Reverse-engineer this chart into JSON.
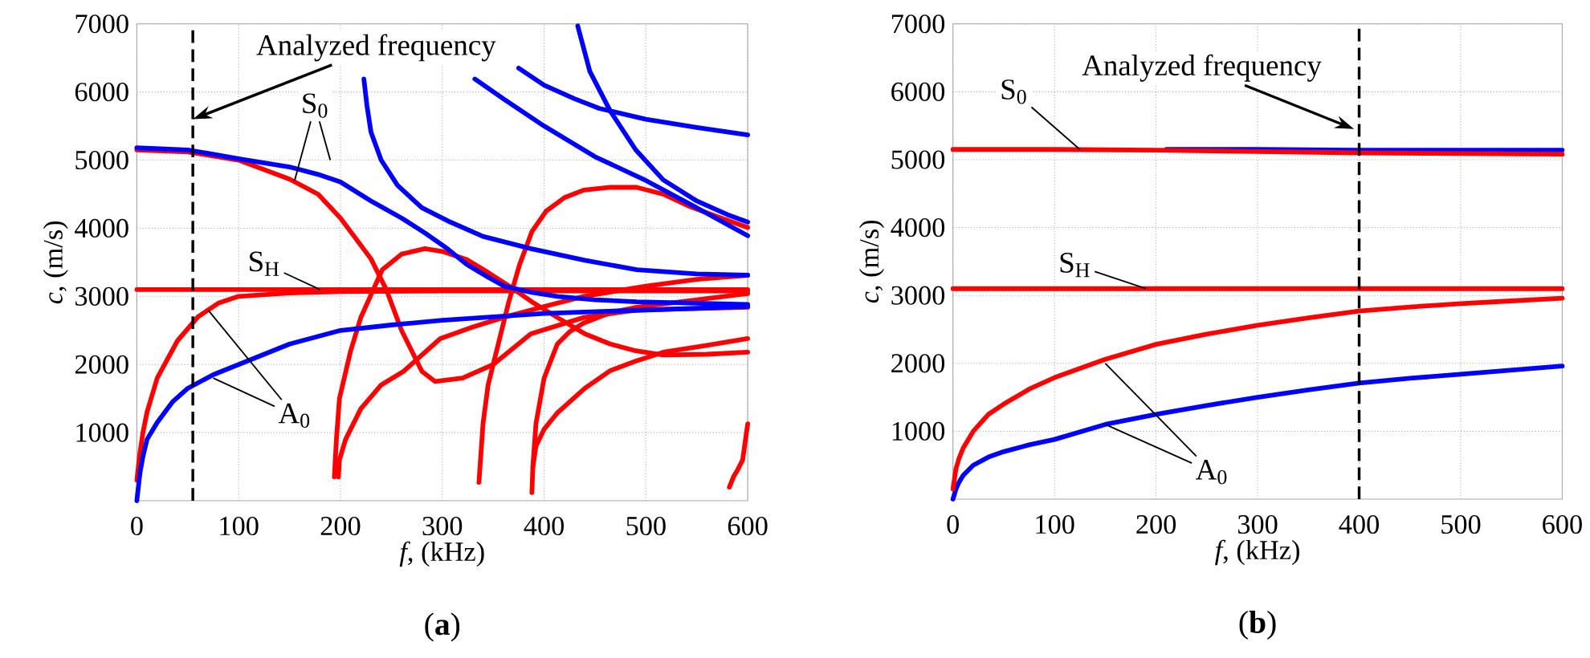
{
  "chart_data": [
    {
      "type": "line",
      "xlabel": "*f*, (kHz)",
      "ylabel": "*c*, (m/s)",
      "xlim": [
        0,
        600
      ],
      "ylim": [
        0,
        7000
      ],
      "xticks": [
        0,
        100,
        200,
        300,
        400,
        500,
        600
      ],
      "yticks": [
        1000,
        2000,
        3000,
        4000,
        5000,
        6000,
        7000
      ],
      "grid": true,
      "ref_lines": [
        {
          "axis": "x",
          "value": 55,
          "color": "#000000",
          "line_style": "dashed"
        }
      ],
      "annotations": [
        {
          "text": "Analyzed frequency",
          "x": 55,
          "y": 5600
        },
        {
          "text": "S$_{0}$",
          "x": 155,
          "y": 4700
        },
        {
          "text": "S$_{H}$",
          "x": 180,
          "y": 3100
        },
        {
          "text": "A$_{0}$",
          "x": 70,
          "y": 2800
        },
        "(**a**)"
      ],
      "series": [
        {
          "color": "#ff0000",
          "x": [
            0,
            50,
            100,
            150,
            178,
            200,
            230,
            245,
            260,
            280,
            293,
            320,
            350,
            387,
            439,
            491,
            600
          ],
          "values": [
            5150,
            5120,
            5000,
            4720,
            4500,
            4150,
            3550,
            3100,
            2500,
            1900,
            1750,
            1800,
            2000,
            2450,
            2690,
            2800,
            2840
          ]
        },
        {
          "color": "#ff0000",
          "x": [
            0,
            3,
            6,
            10,
            20,
            40,
            60,
            80,
            100,
            150,
            200,
            300,
            400,
            500,
            600
          ],
          "values": [
            300,
            700,
            1000,
            1300,
            1800,
            2350,
            2700,
            2900,
            3000,
            3050,
            3070,
            3080,
            3080,
            3080,
            3080
          ]
        },
        {
          "color": "#ff0000",
          "x": [
            0,
            100,
            200,
            300,
            400,
            500,
            600
          ],
          "values": [
            3100,
            3100,
            3100,
            3100,
            3100,
            3100,
            3100
          ]
        },
        {
          "color": "#ff0000",
          "x": [
            194,
            196,
            199,
            210,
            220,
            241,
            260,
            283,
            300,
            324,
            345,
            366,
            390,
            413,
            440,
            465,
            490,
            517,
            560,
            600
          ],
          "values": [
            350,
            900,
            1500,
            2200,
            2690,
            3390,
            3620,
            3700,
            3660,
            3540,
            3350,
            3150,
            2900,
            2690,
            2450,
            2300,
            2200,
            2140,
            2150,
            2180
          ]
        },
        {
          "color": "#ff0000",
          "x": [
            198,
            199,
            205,
            220,
            240,
            262,
            298,
            330,
            360,
            400,
            439,
            500,
            550,
            600
          ],
          "values": [
            350,
            600,
            900,
            1350,
            1700,
            1900,
            2380,
            2550,
            2690,
            2850,
            3000,
            3150,
            3250,
            3310
          ]
        },
        {
          "color": "#ff0000",
          "x": [
            336,
            338,
            340,
            345,
            355,
            365,
            376,
            388,
            402,
            420,
            439,
            465,
            491,
            517,
            543,
            570,
            600
          ],
          "values": [
            270,
            700,
            1130,
            1700,
            2300,
            2900,
            3470,
            3950,
            4250,
            4450,
            4560,
            4600,
            4600,
            4500,
            4320,
            4170,
            4010
          ]
        },
        {
          "color": "#ff0000",
          "x": [
            388,
            389,
            392,
            400,
            413,
            425,
            439,
            465,
            491,
            550,
            600
          ],
          "values": [
            120,
            500,
            1130,
            1800,
            2300,
            2480,
            2610,
            2760,
            2840,
            2950,
            3040
          ]
        },
        {
          "color": "#ff0000",
          "x": [
            389,
            392,
            400,
            413,
            440,
            465,
            490,
            517,
            560,
            600
          ],
          "values": [
            500,
            800,
            1050,
            1290,
            1650,
            1910,
            2050,
            2180,
            2280,
            2380
          ]
        },
        {
          "color": "#ff0000",
          "x": [
            582,
            586,
            590,
            595,
            600
          ],
          "values": [
            200,
            350,
            450,
            600,
            1130
          ]
        },
        {
          "color": "#0000ff",
          "x": [
            0,
            3,
            6,
            10,
            20,
            35,
            50,
            75,
            100,
            150,
            200,
            250,
            300,
            400,
            500,
            600
          ],
          "values": [
            0,
            400,
            650,
            900,
            1150,
            1450,
            1650,
            1850,
            2000,
            2300,
            2500,
            2580,
            2650,
            2750,
            2800,
            2850
          ]
        },
        {
          "color": "#0000ff",
          "x": [
            0,
            50,
            100,
            150,
            178,
            200,
            230,
            260,
            283,
            305,
            324,
            345,
            361,
            387,
            413,
            450,
            491,
            550,
            600
          ],
          "values": [
            5180,
            5150,
            5020,
            4900,
            4790,
            4680,
            4400,
            4150,
            3930,
            3700,
            3470,
            3280,
            3150,
            3060,
            3000,
            2950,
            2920,
            2900,
            2880
          ]
        },
        {
          "color": "#0000ff",
          "x": [
            223,
            226,
            230,
            240,
            256,
            280,
            308,
            340,
            387,
            440,
            491,
            550,
            600
          ],
          "values": [
            6190,
            5800,
            5410,
            5000,
            4630,
            4300,
            4090,
            3880,
            3700,
            3530,
            3390,
            3330,
            3310
          ]
        },
        {
          "color": "#0000ff",
          "x": [
            332,
            360,
            400,
            450,
            500,
            550,
            600
          ],
          "values": [
            6190,
            5900,
            5500,
            5050,
            4700,
            4300,
            3890
          ]
        },
        {
          "color": "#0000ff",
          "x": [
            375,
            400,
            430,
            454,
            500,
            550,
            600
          ],
          "values": [
            6350,
            6100,
            5900,
            5760,
            5600,
            5480,
            5370
          ]
        },
        {
          "color": "#0000ff",
          "x": [
            433,
            445,
            465,
            490,
            517,
            550,
            580,
            600
          ],
          "values": [
            6970,
            6300,
            5720,
            5150,
            4710,
            4400,
            4200,
            4090
          ]
        }
      ]
    },
    {
      "type": "line",
      "xlabel": "*f*, (kHz)",
      "ylabel": "*c*, (m/s)",
      "xlim": [
        0,
        600
      ],
      "ylim": [
        0,
        7000
      ],
      "xticks": [
        0,
        100,
        200,
        300,
        400,
        500,
        600
      ],
      "yticks": [
        1000,
        2000,
        3000,
        4000,
        5000,
        6000,
        7000
      ],
      "grid": true,
      "ref_lines": [
        {
          "axis": "x",
          "value": 400,
          "color": "#000000",
          "line_style": "dashed"
        }
      ],
      "annotations": [
        {
          "text": "Analyzed frequency",
          "x": 395,
          "y": 5450
        },
        {
          "text": "S$_{0}$",
          "x": 125,
          "y": 5150
        },
        {
          "text": "S$_{H}$",
          "x": 190,
          "y": 3100
        },
        {
          "text": "A$_{0}$",
          "x": 150,
          "y": 2000
        },
        "(**b**)"
      ],
      "series": [
        {
          "color": "#0000ff",
          "x": [
            210,
            300,
            400,
            500,
            600
          ],
          "values": [
            5150,
            5150,
            5140,
            5140,
            5140
          ]
        },
        {
          "color": "#ff0000",
          "x": [
            0,
            100,
            200,
            300,
            400,
            500,
            600
          ],
          "values": [
            5150,
            5150,
            5140,
            5120,
            5100,
            5090,
            5080
          ]
        },
        {
          "color": "#ff0000",
          "x": [
            0,
            100,
            200,
            300,
            400,
            500,
            600
          ],
          "values": [
            3100,
            3100,
            3100,
            3100,
            3100,
            3100,
            3100
          ]
        },
        {
          "color": "#0000ff",
          "x": [
            0,
            3,
            6,
            10,
            20,
            35,
            50,
            75,
            100,
            150,
            200,
            250,
            300,
            350,
            400,
            450,
            500,
            550,
            600
          ],
          "values": [
            0,
            150,
            250,
            350,
            500,
            620,
            700,
            800,
            880,
            1100,
            1250,
            1380,
            1500,
            1610,
            1710,
            1780,
            1840,
            1900,
            1960
          ]
        },
        {
          "color": "#ff0000",
          "x": [
            0,
            3,
            6,
            10,
            20,
            35,
            50,
            75,
            100,
            150,
            200,
            250,
            300,
            350,
            400,
            450,
            500,
            550,
            600
          ],
          "values": [
            150,
            450,
            600,
            750,
            1000,
            1250,
            1400,
            1620,
            1790,
            2060,
            2280,
            2430,
            2560,
            2670,
            2770,
            2830,
            2880,
            2920,
            2960
          ]
        }
      ]
    }
  ]
}
